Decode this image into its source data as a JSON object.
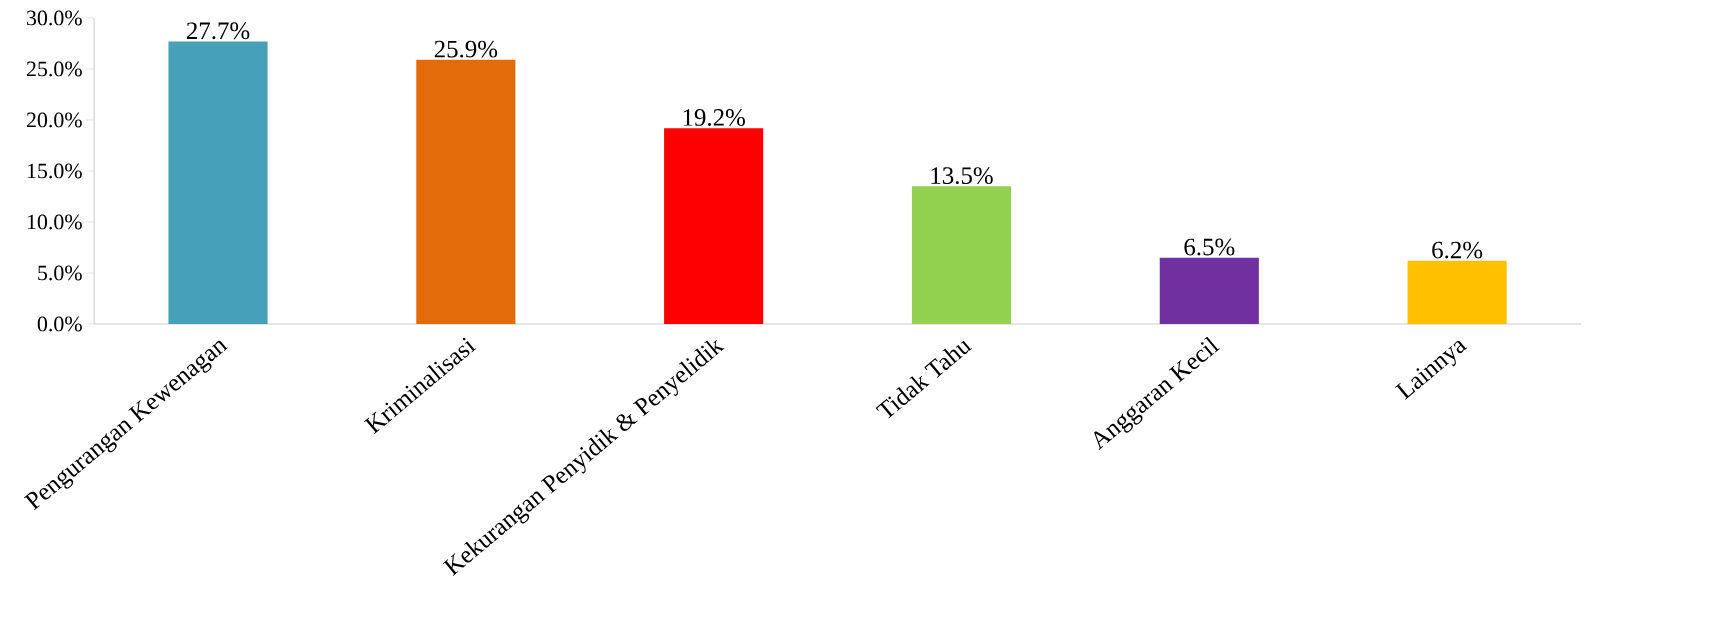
{
  "chart_data": {
    "type": "bar",
    "categories": [
      "Pengurangan Kewenagan",
      "Kriminalisasi",
      "Kekurangan Penyidik & Penyelidik",
      "Tidak Tahu",
      "Anggaran Kecil",
      "Lainnya"
    ],
    "values": [
      27.7,
      25.9,
      19.2,
      13.5,
      6.5,
      6.2
    ],
    "value_labels": [
      "27.7%",
      "25.9%",
      "19.2%",
      "13.5%",
      "6.5%",
      "6.2%"
    ],
    "colors": [
      "#46a0b9",
      "#e36c0a",
      "#ff0000",
      "#92d050",
      "#7030a0",
      "#ffc000"
    ],
    "ylim": [
      0,
      30
    ],
    "yticks": [
      {
        "value": 0,
        "label": "0.0%"
      },
      {
        "value": 5,
        "label": "5.0%"
      },
      {
        "value": 10,
        "label": "10.0%"
      },
      {
        "value": 15,
        "label": "15.0%"
      },
      {
        "value": 20,
        "label": "20.0%"
      },
      {
        "value": 25,
        "label": "25.0%"
      },
      {
        "value": 30,
        "label": "30.0%"
      }
    ],
    "grid": false
  }
}
